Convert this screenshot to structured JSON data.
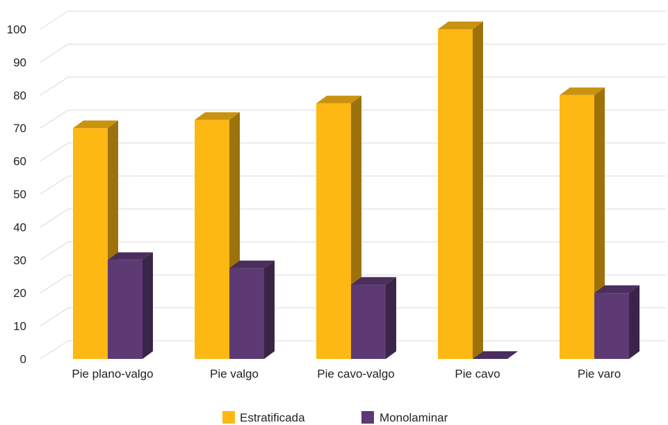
{
  "chart_data": {
    "type": "bar",
    "categories": [
      "Pie plano-valgo",
      "Pie valgo",
      "Pie cavo-valgo",
      "Pie cavo",
      "Pie varo"
    ],
    "series": [
      {
        "name": "Estratificada",
        "values": [
          70,
          72.5,
          77.5,
          100,
          80
        ],
        "color": "#FDB813"
      },
      {
        "name": "Monolaminar",
        "values": [
          30,
          27.5,
          22.5,
          0,
          20
        ],
        "color": "#5E3A74"
      }
    ],
    "title": "",
    "xlabel": "",
    "ylabel": "",
    "ylim": [
      0,
      100
    ],
    "yticks": [
      0,
      10,
      20,
      30,
      40,
      50,
      60,
      70,
      80,
      90,
      100
    ],
    "grid": true,
    "style": "3d",
    "legend": "bottom-center"
  }
}
